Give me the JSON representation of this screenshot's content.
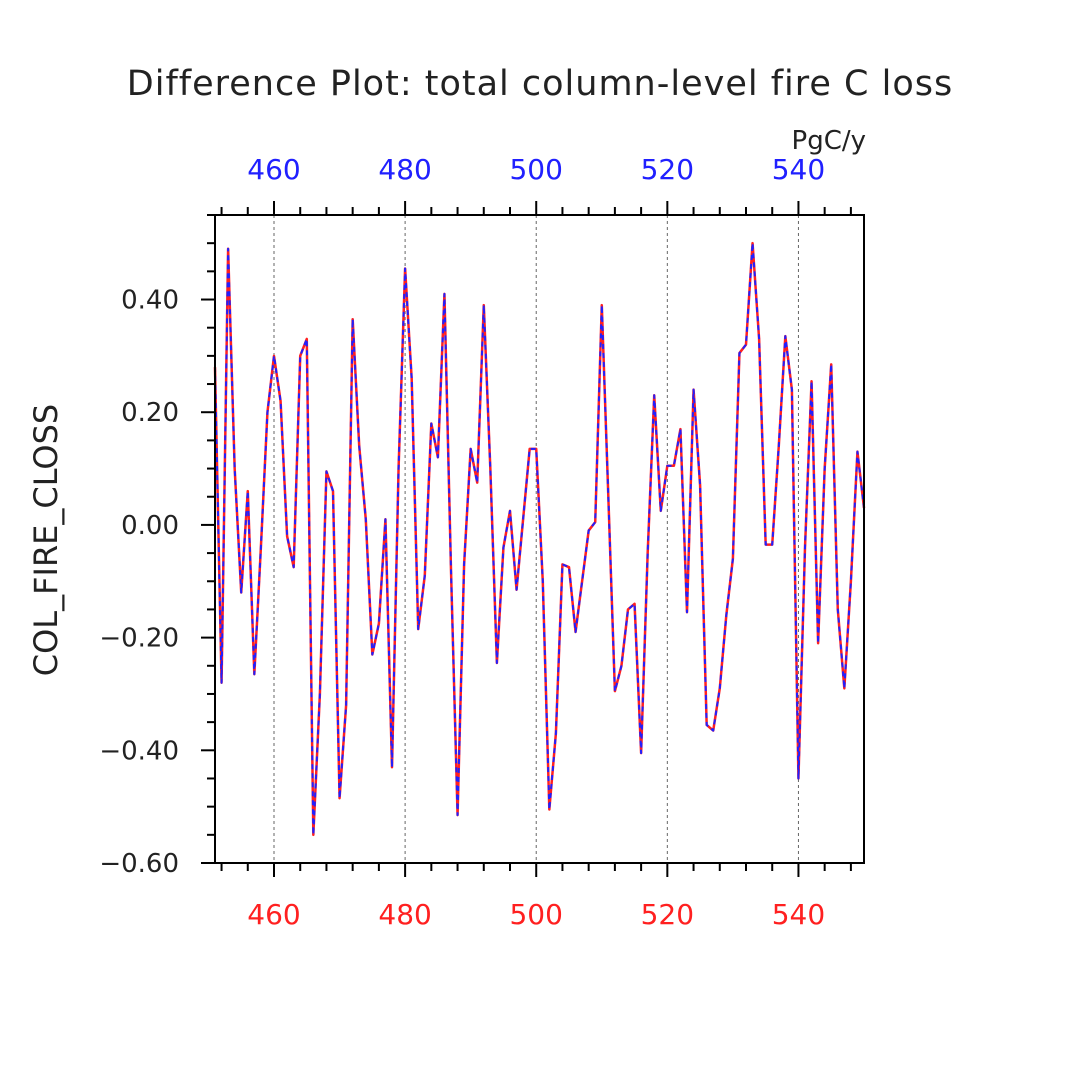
{
  "chart_data": {
    "type": "line",
    "title": "Difference Plot: total column-level fire C loss",
    "units": "PgC/y",
    "ylabel": "COL_FIRE_CLOSS",
    "xlabel": "",
    "xlim": [
      451,
      550
    ],
    "ylim": [
      -0.6,
      0.55
    ],
    "x_ticks": [
      460,
      480,
      500,
      520,
      540
    ],
    "x_tick_labels_bottom": [
      "460",
      "480",
      "500",
      "520",
      "540"
    ],
    "x_tick_labels_top": [
      "460",
      "480",
      "500",
      "520",
      "540"
    ],
    "y_ticks": [
      0.4,
      0.2,
      0.0,
      -0.2,
      -0.4,
      -0.6
    ],
    "y_tick_labels": [
      "0.40",
      "0.20",
      "0.00",
      "−0.20",
      "−0.40",
      "−0.60"
    ],
    "grid": "vertical dashed at major x ticks",
    "colors": {
      "series_a": "#ff2020",
      "series_b": "#2020ff",
      "axis": "#000000",
      "grid": "#666666"
    },
    "x": [
      451,
      452,
      453,
      454,
      455,
      456,
      457,
      458,
      459,
      460,
      461,
      462,
      463,
      464,
      465,
      466,
      467,
      468,
      469,
      470,
      471,
      472,
      473,
      474,
      475,
      476,
      477,
      478,
      479,
      480,
      481,
      482,
      483,
      484,
      485,
      486,
      487,
      488,
      489,
      490,
      491,
      492,
      493,
      494,
      495,
      496,
      497,
      498,
      499,
      500,
      501,
      502,
      503,
      504,
      505,
      506,
      507,
      508,
      509,
      510,
      511,
      512,
      513,
      514,
      515,
      516,
      517,
      518,
      519,
      520,
      521,
      522,
      523,
      524,
      525,
      526,
      527,
      528,
      529,
      530,
      531,
      532,
      533,
      534,
      535,
      536,
      537,
      538,
      539,
      540,
      541,
      542,
      543,
      544,
      545,
      546,
      547,
      548,
      549,
      550
    ],
    "series": [
      {
        "values": [
          0.28,
          -0.28,
          0.49,
          0.1,
          -0.12,
          0.06,
          -0.265,
          -0.04,
          0.2,
          0.3,
          0.22,
          -0.02,
          -0.075,
          0.3,
          0.33,
          -0.55,
          -0.3,
          0.095,
          0.06,
          -0.485,
          -0.32,
          0.365,
          0.14,
          0.01,
          -0.23,
          -0.175,
          0.01,
          -0.43,
          0.1,
          0.455,
          0.26,
          -0.185,
          -0.09,
          0.18,
          0.12,
          0.41,
          -0.08,
          -0.515,
          -0.07,
          0.135,
          0.075,
          0.39,
          0.1,
          -0.245,
          -0.04,
          0.025,
          -0.115,
          0.01,
          0.135,
          0.135,
          -0.1,
          -0.505,
          -0.37,
          -0.07,
          -0.075,
          -0.19,
          -0.1,
          -0.01,
          0.005,
          0.39,
          0.05,
          -0.295,
          -0.25,
          -0.15,
          -0.14,
          -0.405,
          -0.05,
          0.23,
          0.025,
          0.105,
          0.105,
          0.17,
          -0.155,
          0.24,
          0.07,
          -0.355,
          -0.365,
          -0.29,
          -0.16,
          -0.06,
          0.305,
          0.32,
          0.5,
          0.33,
          -0.035,
          -0.035,
          0.14,
          0.335,
          0.24,
          -0.45,
          -0.04,
          0.255,
          -0.21,
          0.1,
          0.285,
          -0.15,
          -0.29,
          -0.1,
          0.13,
          0.03
        ]
      },
      {
        "values": [
          0.28,
          -0.28,
          0.49,
          0.1,
          -0.12,
          0.06,
          -0.265,
          -0.04,
          0.2,
          0.3,
          0.22,
          -0.02,
          -0.075,
          0.3,
          0.33,
          -0.55,
          -0.3,
          0.095,
          0.06,
          -0.485,
          -0.32,
          0.365,
          0.14,
          0.01,
          -0.23,
          -0.175,
          0.01,
          -0.43,
          0.1,
          0.455,
          0.26,
          -0.185,
          -0.09,
          0.18,
          0.12,
          0.41,
          -0.08,
          -0.515,
          -0.07,
          0.135,
          0.075,
          0.39,
          0.1,
          -0.245,
          -0.04,
          0.025,
          -0.115,
          0.01,
          0.135,
          0.135,
          -0.1,
          -0.505,
          -0.37,
          -0.07,
          -0.075,
          -0.19,
          -0.1,
          -0.01,
          0.005,
          0.39,
          0.05,
          -0.295,
          -0.25,
          -0.15,
          -0.14,
          -0.405,
          -0.05,
          0.23,
          0.025,
          0.105,
          0.105,
          0.17,
          -0.155,
          0.24,
          0.07,
          -0.355,
          -0.365,
          -0.29,
          -0.16,
          -0.06,
          0.305,
          0.32,
          0.5,
          0.33,
          -0.035,
          -0.035,
          0.14,
          0.335,
          0.24,
          -0.45,
          -0.04,
          0.255,
          -0.21,
          0.1,
          0.285,
          -0.15,
          -0.29,
          -0.1,
          0.13,
          0.03
        ]
      }
    ]
  }
}
